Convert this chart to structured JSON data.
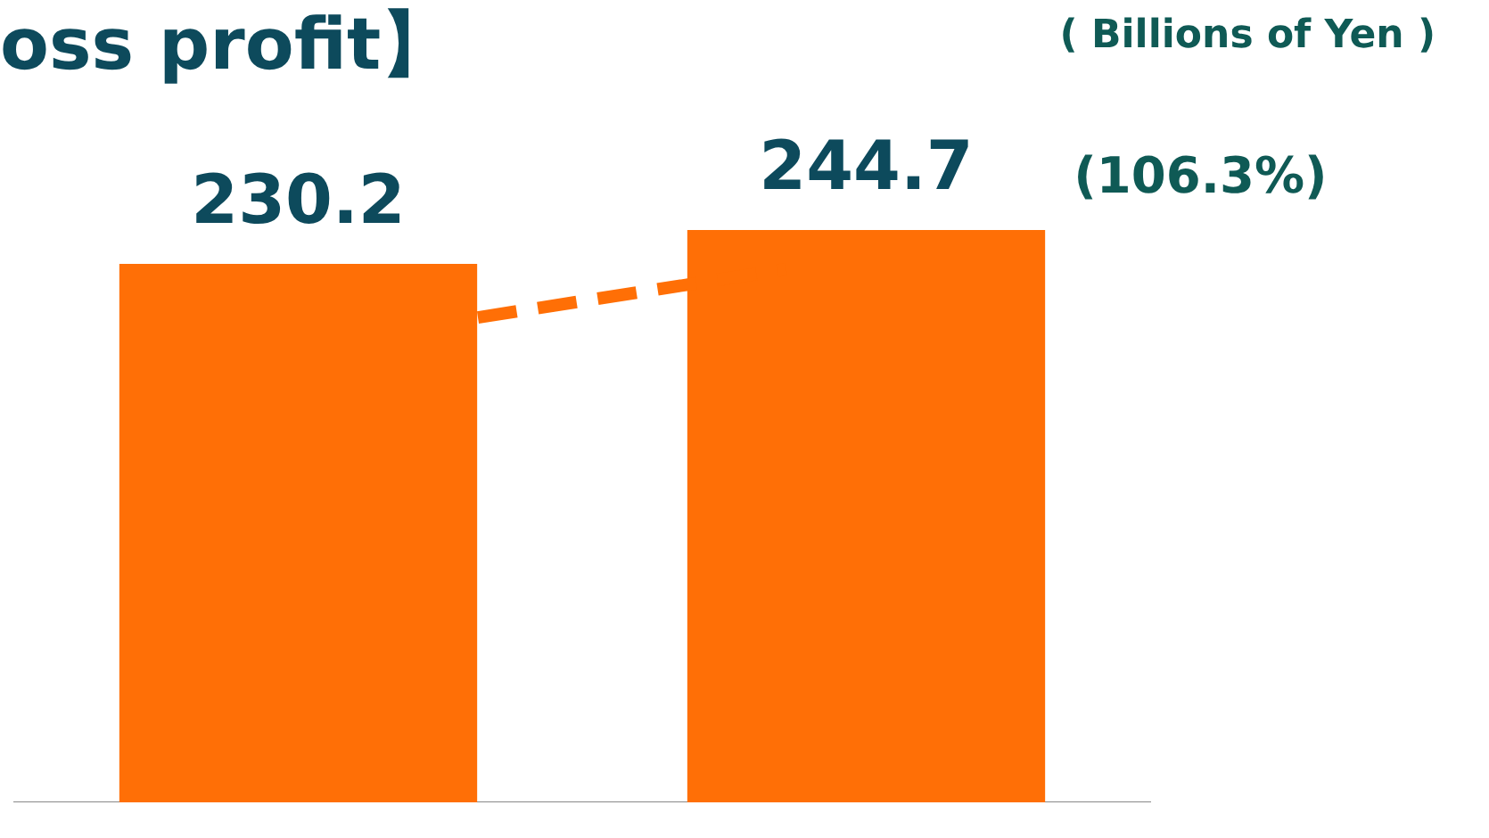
{
  "chart_data": {
    "type": "bar",
    "title": "oss profit】",
    "annotations": [
      "( Billions of Yen )",
      "(106.3%)"
    ],
    "categories": [
      null,
      null
    ],
    "values": [
      230.2,
      244.7
    ],
    "color": "#ff6f06",
    "data_labels": true,
    "tick_labels": false,
    "grid": false,
    "legend": false
  }
}
